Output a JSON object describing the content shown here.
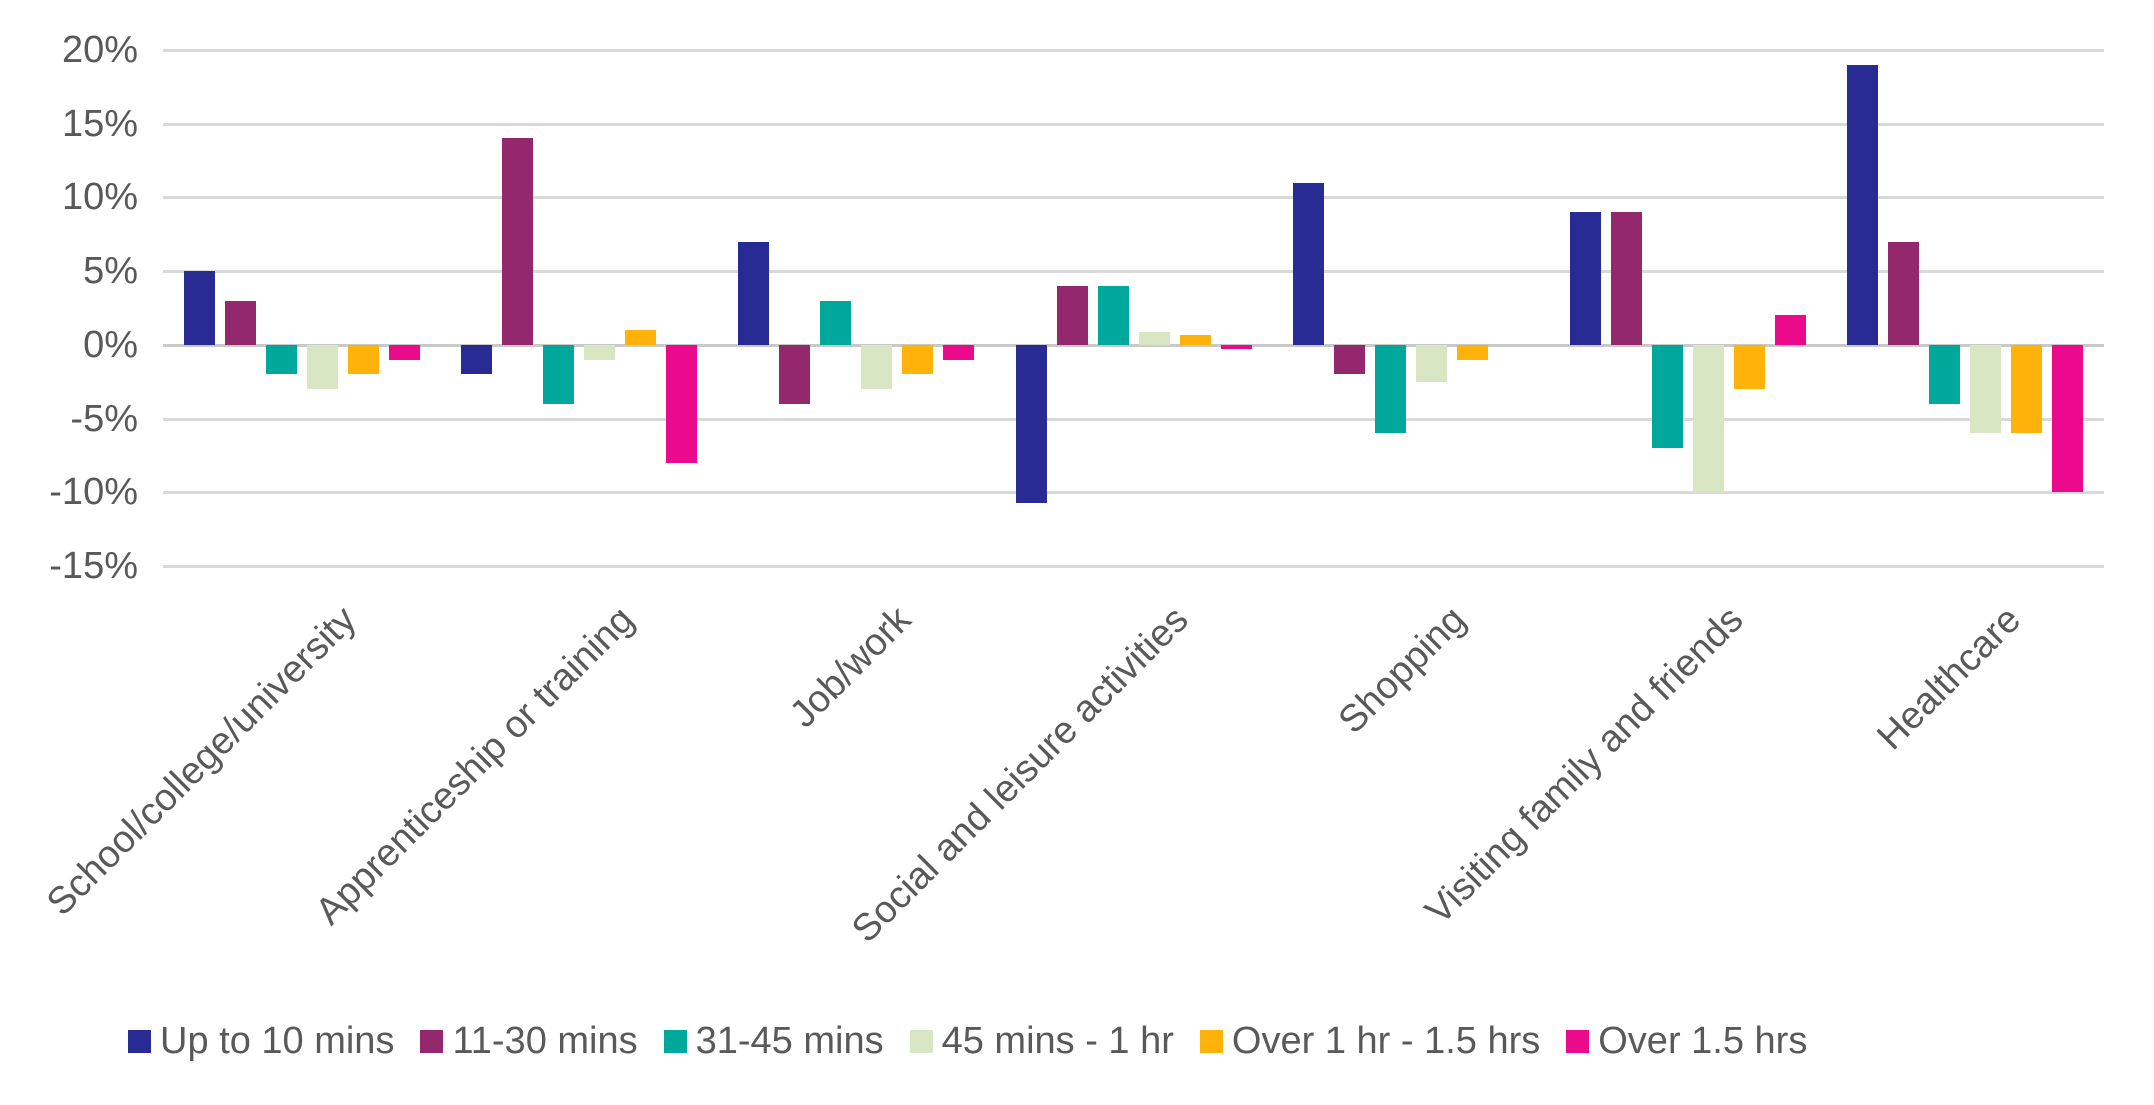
{
  "colors": {
    "grid": "#d9d9d9",
    "zero_line": "#c9c9c9",
    "text": "#595959",
    "background": "#ffffff"
  },
  "chart_data": {
    "type": "bar",
    "title": "",
    "xlabel": "",
    "ylabel": "",
    "grid": true,
    "legend_position": "bottom",
    "y_axis": {
      "min": -15,
      "max": 20,
      "step": 5,
      "tick_labels": [
        "20%",
        "15%",
        "10%",
        "5%",
        "0%",
        "-5%",
        "-10%",
        "-15%"
      ]
    },
    "categories": [
      "School/college/university",
      "Apprenticeship or training",
      "Job/work",
      "Social and leisure activities",
      "Shopping",
      "Visiting family and friends",
      "Healthcare"
    ],
    "series": [
      {
        "name": "Up to 10 mins",
        "color": "#292b94",
        "values": [
          5,
          -2,
          7,
          -10.7,
          11,
          9,
          19
        ]
      },
      {
        "name": "11-30 mins",
        "color": "#94286d",
        "values": [
          3,
          14,
          -4,
          4,
          -2,
          9,
          7
        ]
      },
      {
        "name": "31-45 mins",
        "color": "#00a79b",
        "values": [
          -2,
          -4,
          3,
          4,
          -6,
          -7,
          -4
        ]
      },
      {
        "name": "45 mins - 1 hr",
        "color": "#d9e6c3",
        "values": [
          -3,
          -1,
          -3,
          0.9,
          -2.5,
          -10,
          -6
        ]
      },
      {
        "name": "Over 1 hr - 1.5 hrs",
        "color": "#ffb30a",
        "values": [
          -2,
          1,
          -2,
          0.7,
          -1,
          -3,
          -6
        ]
      },
      {
        "name": "Over 1.5 hrs",
        "color": "#eb0a8c",
        "values": [
          -1,
          -8,
          -1,
          -0.3,
          0,
          2,
          -10
        ]
      }
    ]
  }
}
